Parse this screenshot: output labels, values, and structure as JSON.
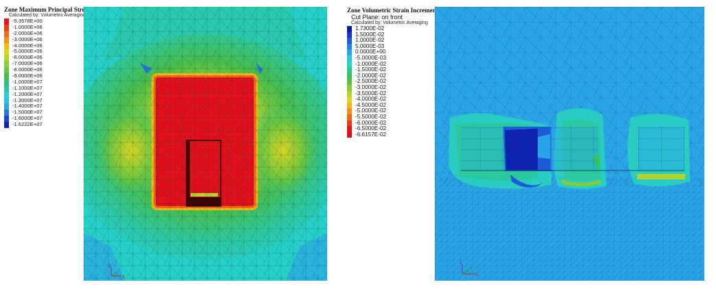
{
  "left_plot": {
    "legend_title": "Zone Maximum Principal Stress",
    "legend_subtitle": "Calculated by: Volumetric Averaging",
    "legend_items": [
      {
        "label": "-5.3578E+00",
        "color": "#e8111b"
      },
      {
        "label": "-1.0000E+06",
        "color": "#ee3a1a"
      },
      {
        "label": "-2.0000E+06",
        "color": "#f06a17"
      },
      {
        "label": "-3.0000E+06",
        "color": "#f39214"
      },
      {
        "label": "-4.0000E+06",
        "color": "#f4b817"
      },
      {
        "label": "-5.0000E+06",
        "color": "#d9d622"
      },
      {
        "label": "-6.0000E+06",
        "color": "#b4d52c"
      },
      {
        "label": "-7.0000E+06",
        "color": "#8fce38"
      },
      {
        "label": "-8.0000E+06",
        "color": "#6bc63f"
      },
      {
        "label": "-9.0000E+06",
        "color": "#48bd4c"
      },
      {
        "label": "-1.0000E+07",
        "color": "#32c07a"
      },
      {
        "label": "-1.1000E+07",
        "color": "#2bc8a6"
      },
      {
        "label": "-1.2000E+07",
        "color": "#27d0c9"
      },
      {
        "label": "-1.3000E+07",
        "color": "#2cc3df"
      },
      {
        "label": "-1.4000E+07",
        "color": "#2ca7e6"
      },
      {
        "label": "-1.5000E+07",
        "color": "#2478dc"
      },
      {
        "label": "-1.6000E+07",
        "color": "#1a47c8"
      },
      {
        "label": "-1.6222E+07",
        "color": "#1122b0"
      }
    ]
  },
  "right_plot": {
    "legend_title": "Zone Volumetric Strain Increment",
    "legend_cutplane": "Cut Plane: on front",
    "legend_subtitle": "Calculated by: Volumetric Averaging",
    "legend_items": [
      {
        "label": "1.7300E-02",
        "color": "#0a1aa8"
      },
      {
        "label": "1.5000E-02",
        "color": "#1436c0"
      },
      {
        "label": "1.0000E-02",
        "color": "#1c5ad6"
      },
      {
        "label": "5.0000E-03",
        "color": "#2484e4"
      },
      {
        "label": "0.0000E+00",
        "color": "#2aa6e8"
      },
      {
        "label": "-5.0000E-03",
        "color": "#2cc6de"
      },
      {
        "label": "-1.0000E-02",
        "color": "#2ad2c0"
      },
      {
        "label": "-1.5000E-02",
        "color": "#2bc891"
      },
      {
        "label": "-2.0000E-02",
        "color": "#3bbe5e"
      },
      {
        "label": "-2.5000E-02",
        "color": "#5cc23e"
      },
      {
        "label": "-3.0000E-02",
        "color": "#86cc35"
      },
      {
        "label": "-3.5000E-02",
        "color": "#b2d52c"
      },
      {
        "label": "-4.0000E-02",
        "color": "#dbd622"
      },
      {
        "label": "-4.5000E-02",
        "color": "#f2b818"
      },
      {
        "label": "-5.0000E-02",
        "color": "#f29015"
      },
      {
        "label": "-5.5000E-02",
        "color": "#f06416"
      },
      {
        "label": "-6.0000E-02",
        "color": "#ee3a19"
      },
      {
        "label": "-6.5000E-02",
        "color": "#e8161b"
      },
      {
        "label": "-6.6157E-02",
        "color": "#dc0f16"
      }
    ]
  },
  "axes": {
    "z": "Z",
    "x": "X",
    "y": "Y"
  }
}
